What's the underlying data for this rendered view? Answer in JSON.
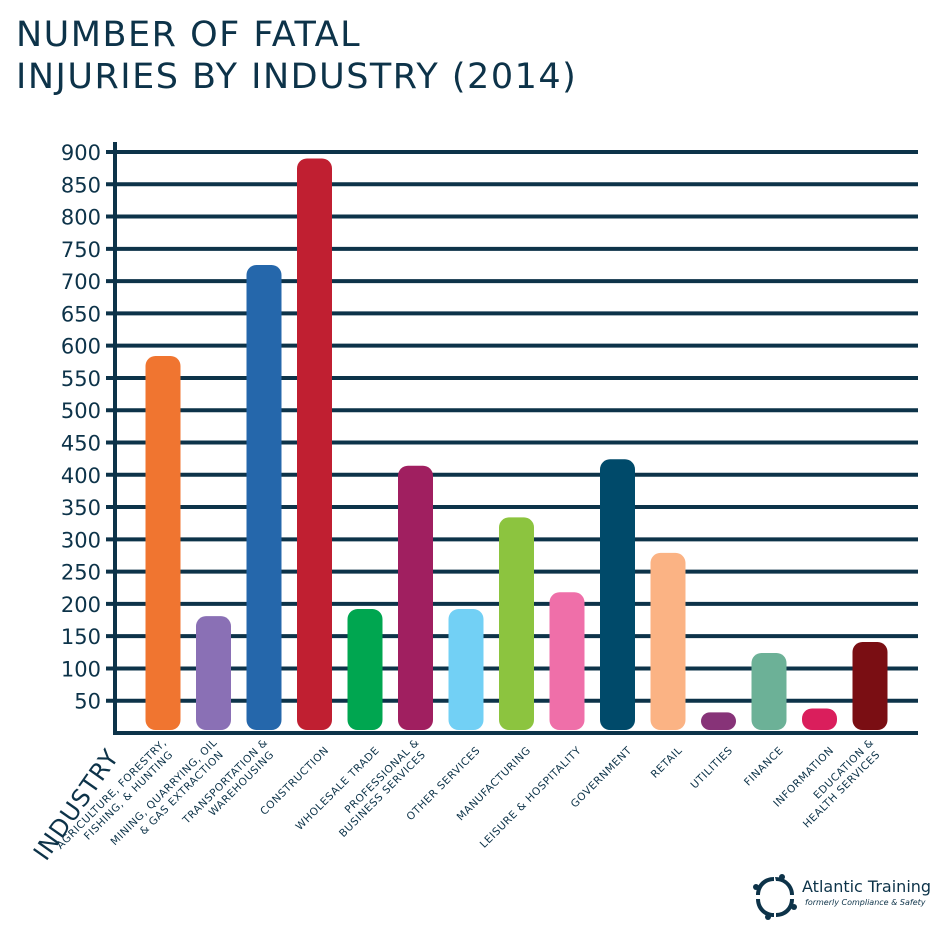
{
  "title_lines": [
    "NUMBER OF FATAL",
    "INJURIES BY INDUSTRY (2014)"
  ],
  "chart_data": {
    "type": "bar",
    "title": "NUMBER OF FATAL INJURIES BY INDUSTRY (2014)",
    "xlabel": "INDUSTRY",
    "ylabel": "",
    "ylim": [
      0,
      900
    ],
    "yticks": [
      50,
      100,
      150,
      200,
      250,
      300,
      350,
      400,
      450,
      500,
      550,
      600,
      650,
      700,
      750,
      800,
      850,
      900
    ],
    "grid": true,
    "legend": "none",
    "categories": [
      [
        "AGRICULTURE, FORESTRY,",
        "FISHING, & HUNTING"
      ],
      [
        "MINING, QUARRYING, OIL",
        "& GAS EXTRACTION"
      ],
      [
        "TRANSPORTATION &",
        "WAREHOUSING"
      ],
      [
        "CONSTRUCTION"
      ],
      [
        "WHOLESALE TRADE"
      ],
      [
        "PROFESSIONAL &",
        "BUSINESS SERVICES"
      ],
      [
        "OTHER SERVICES"
      ],
      [
        "MANUFACTURING"
      ],
      [
        "LEISURE & HOSPITALITY"
      ],
      [
        "GOVERNMENT"
      ],
      [
        "RETAIL"
      ],
      [
        "UTILITIES"
      ],
      [
        "FINANCE"
      ],
      [
        "INFORMATION"
      ],
      [
        "EDUCATION &",
        "HEALTH SERVICES"
      ]
    ],
    "values": [
      584,
      181,
      725,
      890,
      192,
      414,
      192,
      334,
      218,
      424,
      279,
      32,
      124,
      38,
      141
    ],
    "colors": [
      "#f07530",
      "#8a70b5",
      "#2567ab",
      "#c01f31",
      "#00a650",
      "#a01f60",
      "#72d0f5",
      "#8cc43f",
      "#ef6fa9",
      "#004a6a",
      "#fbb384",
      "#873378",
      "#6cb197",
      "#da1e5c",
      "#7a0e13"
    ]
  },
  "logo": {
    "name": "Atlantic Training",
    "tagline": "formerly Compliance & Safety"
  }
}
